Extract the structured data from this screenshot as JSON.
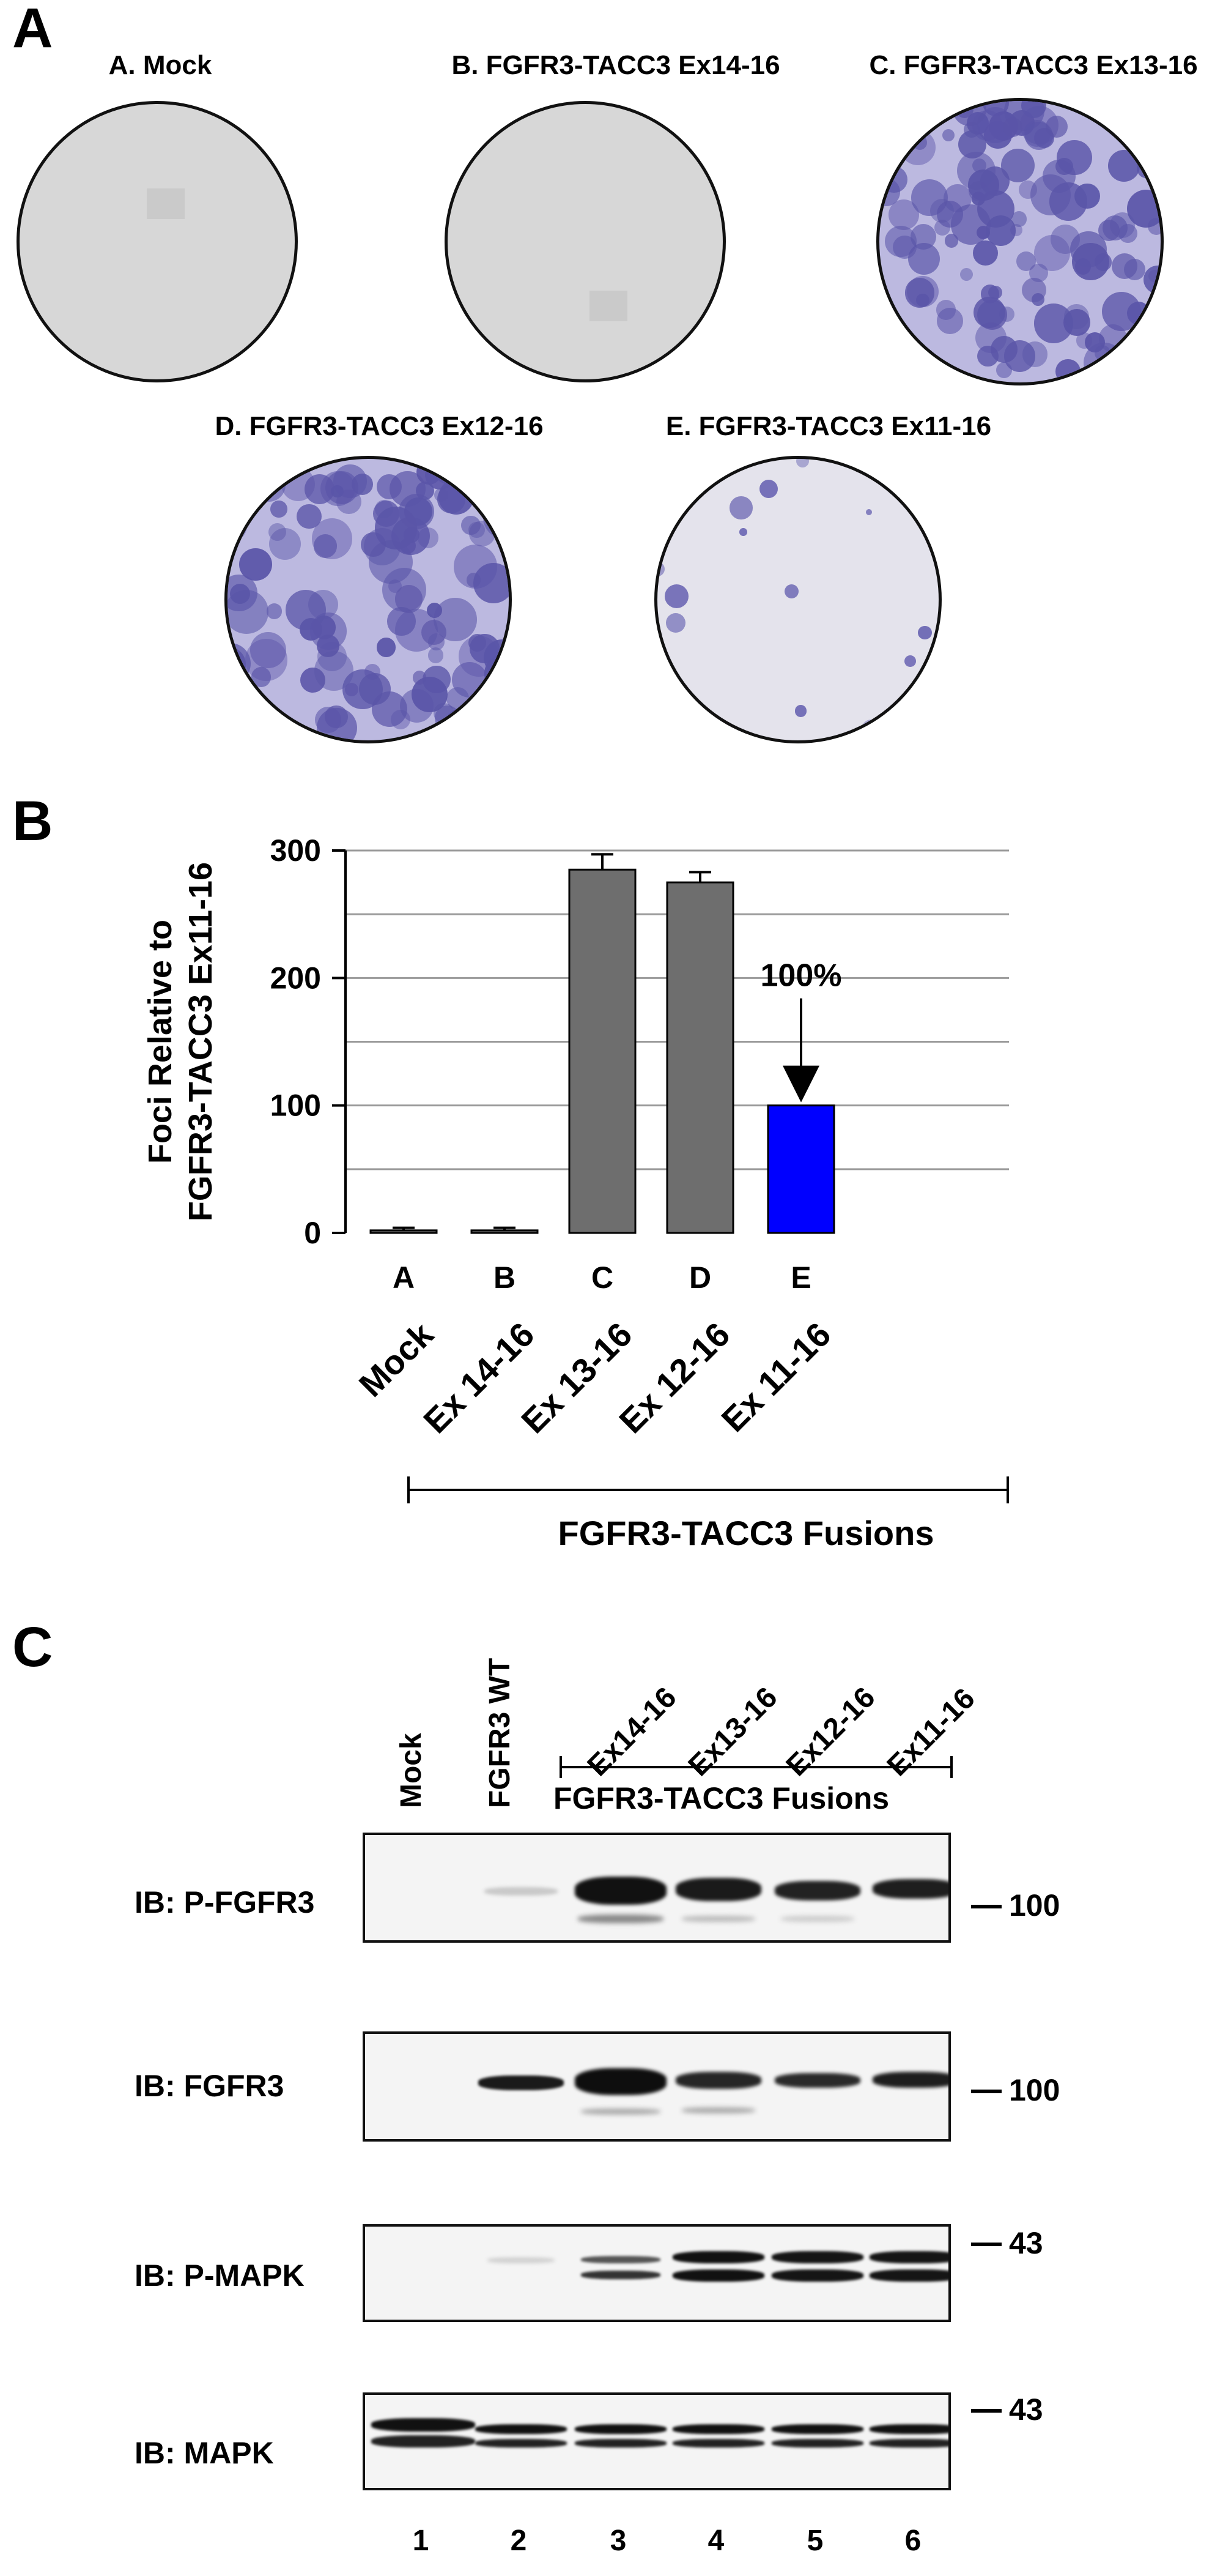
{
  "panel_a": {
    "letter": "A",
    "dishes": [
      {
        "title": "A. Mock"
      },
      {
        "title": "B. FGFR3-TACC3 Ex14-16"
      },
      {
        "title": "C. FGFR3-TACC3 Ex13-16"
      },
      {
        "title": "D. FGFR3-TACC3 Ex12-16"
      },
      {
        "title": "E. FGFR3-TACC3 Ex11-16"
      }
    ]
  },
  "panel_b": {
    "letter": "B",
    "group_label": "FGFR3-TACC3 Fusions",
    "annotation": "100%"
  },
  "chart_data": {
    "type": "bar",
    "ylabel": "Foci Relative to FGFR3-TACC3 Ex11-16",
    "ylim": [
      0,
      300
    ],
    "yticks": [
      0,
      100,
      200,
      300
    ],
    "grid": true,
    "categories": [
      "A",
      "B",
      "C",
      "D",
      "E"
    ],
    "category_names": [
      "Mock",
      "Ex 14-16",
      "Ex 13-16",
      "Ex 12-16",
      "Ex 11-16"
    ],
    "values": [
      2,
      2,
      285,
      275,
      100
    ],
    "errors": [
      2,
      2,
      12,
      8,
      0
    ],
    "colors": [
      "#6e6e6e",
      "#6e6e6e",
      "#6e6e6e",
      "#6e6e6e",
      "#0000ff"
    ]
  },
  "panel_c": {
    "letter": "C",
    "lane_labels": [
      "Mock",
      "FGFR3 WT"
    ],
    "fusion_lanes": [
      "Ex14-16",
      "Ex13-16",
      "Ex12-16",
      "Ex11-16"
    ],
    "fusion_group_label": "FGFR3-TACC3 Fusions",
    "lane_numbers": [
      "1",
      "2",
      "3",
      "4",
      "5",
      "6"
    ],
    "blots": [
      {
        "label": "IB: P-FGFR3",
        "mw": "100"
      },
      {
        "label": "IB: FGFR3",
        "mw": "100"
      },
      {
        "label": "IB: P-MAPK",
        "mw": "43"
      },
      {
        "label": "IB: MAPK",
        "mw": "43"
      }
    ]
  }
}
